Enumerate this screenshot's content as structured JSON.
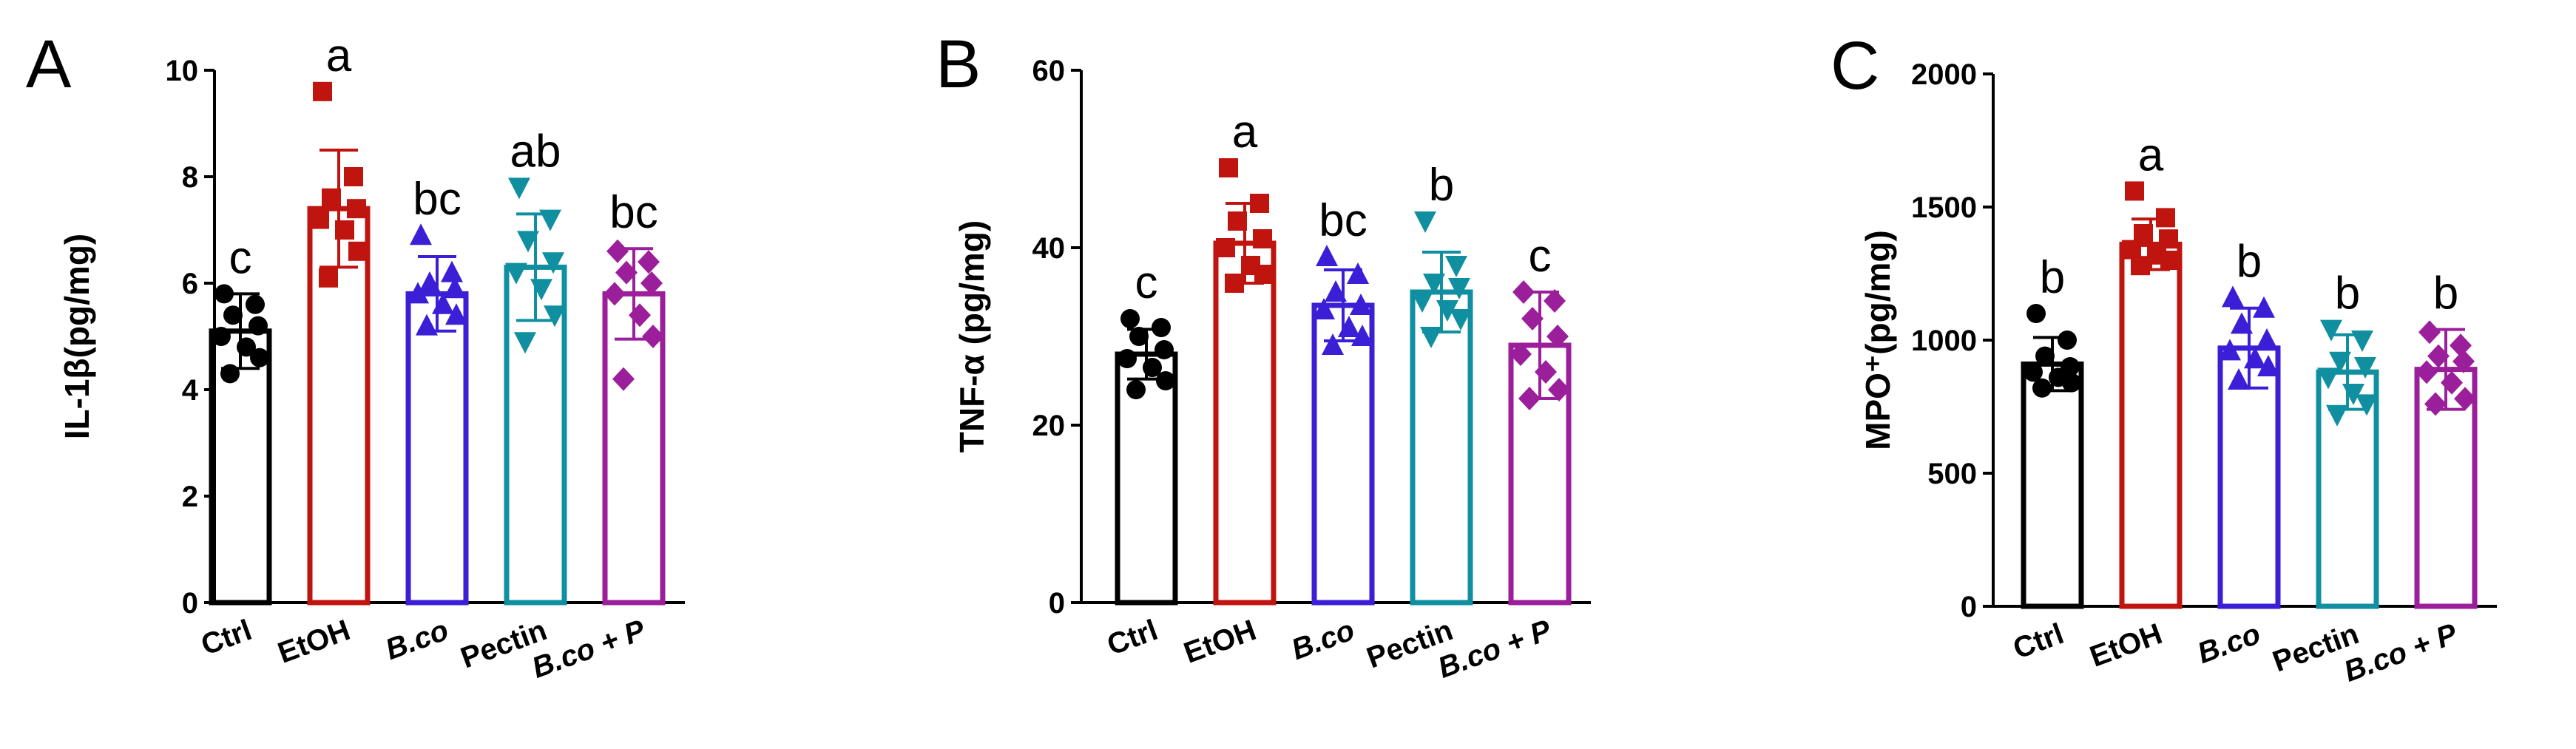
{
  "chart_data": [
    {
      "type": "bar",
      "panel": "A",
      "ylabel": "IL-1β(pg/mg)",
      "ylim": [
        0,
        10
      ],
      "yticks": [
        "0",
        "2",
        "4",
        "6",
        "8",
        "10"
      ],
      "categories": [
        "Ctrl",
        "EtOH",
        "B.co",
        "Pectin",
        "B.co + P"
      ],
      "italic_categories": [
        false,
        false,
        true,
        false,
        true
      ],
      "colors": [
        "#000000",
        "#c0140f",
        "#3a1fd6",
        "#0f8fa0",
        "#9b1f9a"
      ],
      "markers": [
        "circle",
        "square",
        "triangle-up",
        "triangle-down",
        "diamond"
      ],
      "values": [
        5.1,
        7.4,
        5.8,
        6.3,
        5.8
      ],
      "errors": [
        0.7,
        1.1,
        0.7,
        1.0,
        0.85
      ],
      "significance": [
        "c",
        "a",
        "bc",
        "ab",
        "bc"
      ],
      "points": [
        [
          5.8,
          5.6,
          5.4,
          5.2,
          5.0,
          4.8,
          4.6,
          4.3
        ],
        [
          9.6,
          8.0,
          7.6,
          7.4,
          7.2,
          7.0,
          6.6,
          6.1
        ],
        [
          6.9,
          6.2,
          6.0,
          5.9,
          5.8,
          5.6,
          5.4,
          5.2
        ],
        [
          7.8,
          7.2,
          6.8,
          6.4,
          6.2,
          5.9,
          5.4,
          4.9
        ],
        [
          6.6,
          6.4,
          6.2,
          6.0,
          5.8,
          5.4,
          5.0,
          4.2
        ]
      ]
    },
    {
      "type": "bar",
      "panel": "B",
      "ylabel": "TNF-α (pg/mg)",
      "ylim": [
        0,
        60
      ],
      "yticks": [
        "0",
        "20",
        "40",
        "60"
      ],
      "categories": [
        "Ctrl",
        "EtOH",
        "B.co",
        "Pectin",
        "B.co + P"
      ],
      "italic_categories": [
        false,
        false,
        true,
        false,
        true
      ],
      "colors": [
        "#000000",
        "#c0140f",
        "#3a1fd6",
        "#0f8fa0",
        "#9b1f9a"
      ],
      "markers": [
        "circle",
        "square",
        "triangle-up",
        "triangle-down",
        "diamond"
      ],
      "values": [
        28.0,
        40.5,
        33.5,
        35.0,
        29.0
      ],
      "errors": [
        2.8,
        4.5,
        4.0,
        4.5,
        6.0
      ],
      "significance": [
        "c",
        "a",
        "bc",
        "b",
        "c"
      ],
      "points": [
        [
          32.0,
          31.0,
          30.0,
          28.5,
          27.5,
          26.5,
          25.0,
          24.0
        ],
        [
          49.0,
          45.0,
          43.0,
          41.0,
          40.0,
          38.0,
          37.0,
          36.0
        ],
        [
          39.0,
          37.0,
          35.0,
          33.5,
          33.0,
          31.0,
          30.0,
          29.0
        ],
        [
          43.0,
          38.0,
          36.0,
          35.5,
          34.0,
          33.0,
          32.0,
          30.0
        ],
        [
          35.0,
          34.0,
          32.0,
          30.0,
          28.0,
          26.0,
          24.0,
          23.0
        ]
      ]
    },
    {
      "type": "bar",
      "panel": "C",
      "ylabel": "MPO⁺(pg/mg)",
      "ylim": [
        0,
        2000
      ],
      "yticks": [
        "0",
        "500",
        "1000",
        "1500",
        "2000"
      ],
      "categories": [
        "Ctrl",
        "EtOH",
        "B.co",
        "Pectin",
        "B.co + P"
      ],
      "italic_categories": [
        false,
        false,
        true,
        false,
        true
      ],
      "colors": [
        "#000000",
        "#c0140f",
        "#3a1fd6",
        "#0f8fa0",
        "#9b1f9a"
      ],
      "markers": [
        "circle",
        "square",
        "triangle-up",
        "triangle-down",
        "diamond"
      ],
      "values": [
        910,
        1360,
        970,
        880,
        890
      ],
      "errors": [
        100,
        95,
        150,
        140,
        150
      ],
      "significance": [
        "b",
        "a",
        "b",
        "b",
        "b"
      ],
      "points": [
        [
          1100,
          1000,
          940,
          900,
          880,
          860,
          840,
          820
        ],
        [
          1560,
          1460,
          1400,
          1380,
          1340,
          1320,
          1300,
          1280
        ],
        [
          1160,
          1120,
          1060,
          1000,
          960,
          930,
          900,
          850
        ],
        [
          1040,
          1000,
          920,
          900,
          860,
          800,
          760,
          720
        ],
        [
          1030,
          980,
          940,
          920,
          880,
          840,
          780,
          760
        ]
      ]
    }
  ]
}
